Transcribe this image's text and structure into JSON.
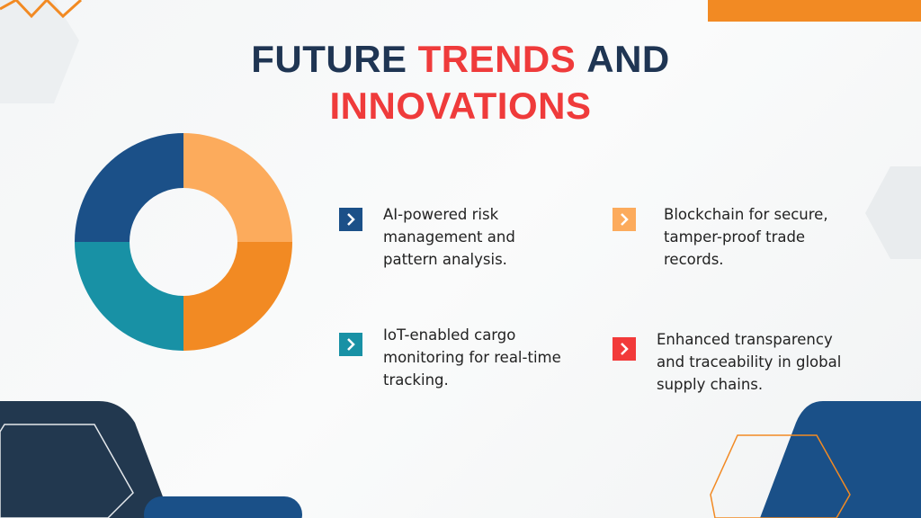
{
  "title_parts": [
    {
      "text": "FUTURE",
      "highlight": false
    },
    {
      "text": "TRENDS",
      "highlight": true
    },
    {
      "text": "AND",
      "highlight": false
    },
    {
      "text": "INNOVATIONS",
      "highlight": true
    }
  ],
  "items": [
    {
      "text": "AI-powered risk management and pattern analysis.",
      "color": "#1b5088"
    },
    {
      "text": "Blockchain for secure, tamper-proof trade records.",
      "color": "#fcab5c"
    },
    {
      "text": "IoT-enabled cargo monitoring for real-time tracking.",
      "color": "#1891a5"
    },
    {
      "text": "Enhanced transparency and traceability in global supply chains.",
      "color": "#f23a3a"
    }
  ]
}
